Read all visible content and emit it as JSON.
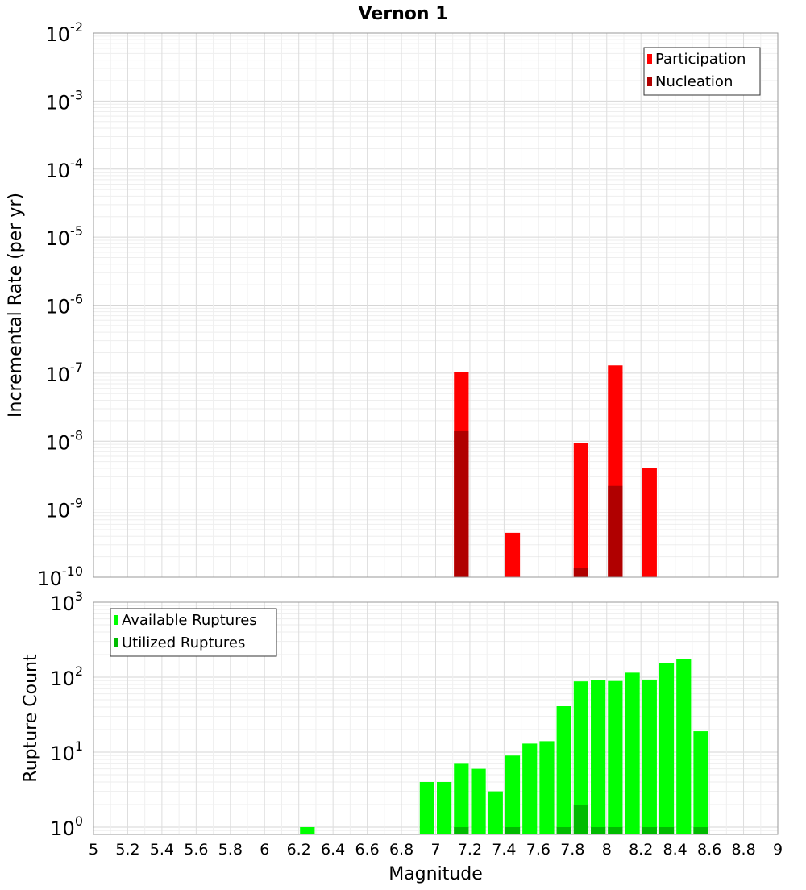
{
  "title": "Vernon 1",
  "chart_data": [
    {
      "type": "bar",
      "panel": "rate",
      "title": "Vernon 1",
      "ylabel": "Incremental Rate (per yr)",
      "xlabel": "",
      "yscale": "log",
      "ylim": [
        1e-10,
        0.01
      ],
      "xlim": [
        5,
        9
      ],
      "bin_width": 0.1,
      "grid": true,
      "legend_position": "top-right",
      "y_ticks": [
        {
          "base": "10",
          "exp": "-10",
          "value": 1e-10
        },
        {
          "base": "10",
          "exp": "-9",
          "value": 1e-09
        },
        {
          "base": "10",
          "exp": "-8",
          "value": 1e-08
        },
        {
          "base": "10",
          "exp": "-7",
          "value": 1e-07
        },
        {
          "base": "10",
          "exp": "-6",
          "value": 1e-06
        },
        {
          "base": "10",
          "exp": "-5",
          "value": 1e-05
        },
        {
          "base": "10",
          "exp": "-4",
          "value": 0.0001
        },
        {
          "base": "10",
          "exp": "-3",
          "value": 0.001
        },
        {
          "base": "10",
          "exp": "-2",
          "value": 0.01
        }
      ],
      "series": [
        {
          "name": "Participation",
          "color": "#ff0000",
          "x": [
            7.15,
            7.45,
            7.85,
            8.05,
            8.25
          ],
          "values": [
            1.05e-07,
            4.5e-10,
            9.5e-09,
            1.3e-07,
            4e-09
          ]
        },
        {
          "name": "Nucleation",
          "color": "#b00000",
          "x": [
            7.15,
            7.85,
            8.05
          ],
          "values": [
            1.4e-08,
            1.35e-10,
            2.2e-09
          ]
        }
      ]
    },
    {
      "type": "bar",
      "panel": "count",
      "ylabel": "Rupture Count",
      "xlabel": "Magnitude",
      "yscale": "log",
      "ylim": [
        0.8,
        1000
      ],
      "xlim": [
        5,
        9
      ],
      "bin_width": 0.1,
      "grid": true,
      "legend_position": "top-left",
      "x_ticks": [
        "5",
        "5.2",
        "5.4",
        "5.6",
        "5.8",
        "6",
        "6.2",
        "6.4",
        "6.6",
        "6.8",
        "7",
        "7.2",
        "7.4",
        "7.6",
        "7.8",
        "8",
        "8.2",
        "8.4",
        "8.6",
        "8.8",
        "9"
      ],
      "y_ticks": [
        {
          "base": "10",
          "exp": "0",
          "value": 1
        },
        {
          "base": "10",
          "exp": "1",
          "value": 10
        },
        {
          "base": "10",
          "exp": "2",
          "value": 100
        },
        {
          "base": "10",
          "exp": "3",
          "value": 1000
        }
      ],
      "series": [
        {
          "name": "Available Ruptures",
          "color": "#00ff00",
          "x": [
            6.25,
            6.95,
            7.05,
            7.15,
            7.25,
            7.35,
            7.45,
            7.55,
            7.65,
            7.75,
            7.85,
            7.95,
            8.05,
            8.15,
            8.25,
            8.35,
            8.45,
            8.55
          ],
          "values": [
            1,
            4,
            4,
            7,
            6,
            3,
            9,
            13,
            14,
            41,
            88,
            92,
            89,
            115,
            93,
            155,
            175,
            19
          ]
        },
        {
          "name": "Utilized Ruptures",
          "color": "#00bb00",
          "x": [
            7.15,
            7.45,
            7.75,
            7.85,
            7.95,
            8.05,
            8.25,
            8.35,
            8.55
          ],
          "values": [
            1,
            1,
            1,
            2,
            1,
            1,
            1,
            1,
            1
          ]
        }
      ]
    }
  ]
}
